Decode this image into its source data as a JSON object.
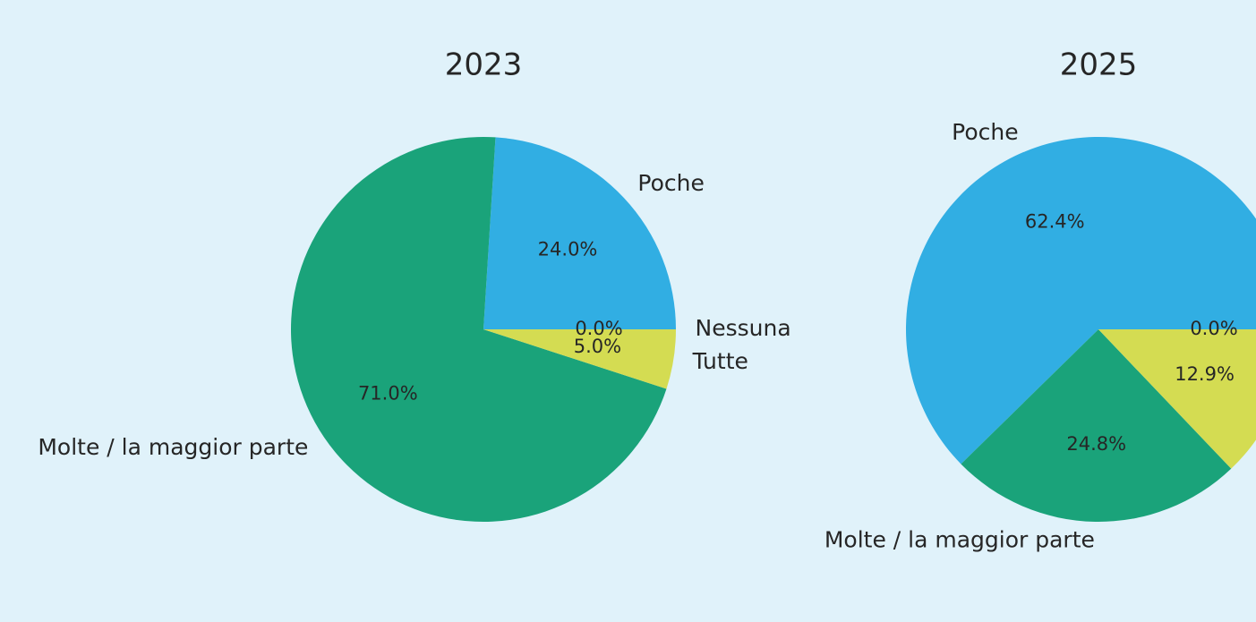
{
  "chart_data": [
    {
      "type": "pie",
      "title": "2023",
      "categories": [
        "Nessuna",
        "Poche",
        "Molte / la maggior parte",
        "Tutte"
      ],
      "values": [
        0.0,
        24.0,
        71.0,
        5.0
      ],
      "value_labels": [
        "0.0%",
        "24.0%",
        "71.0%",
        "5.0%"
      ],
      "colors": [
        "#d4dc52",
        "#31aee3",
        "#1aa37a",
        "#d4dc52"
      ]
    },
    {
      "type": "pie",
      "title": "2025",
      "categories": [
        null,
        "Poche",
        "Molte / la maggior parte",
        null
      ],
      "values": [
        0.0,
        62.4,
        24.8,
        12.9
      ],
      "value_labels": [
        "0.0%",
        "62.4%",
        "24.8%",
        "12.9%"
      ],
      "colors": [
        "#d4dc52",
        "#31aee3",
        "#1aa37a",
        "#d4dc52"
      ]
    }
  ]
}
